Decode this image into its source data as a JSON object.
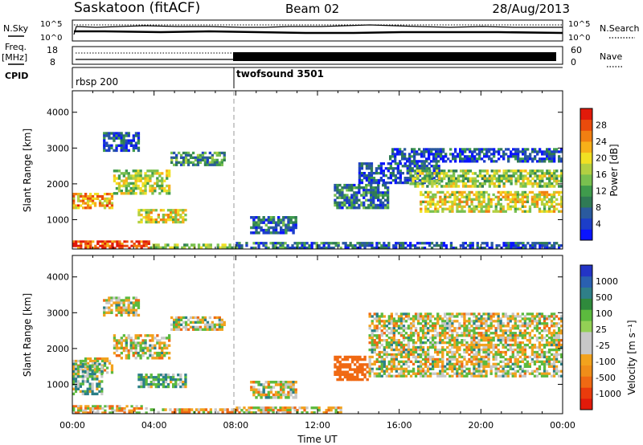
{
  "header": {
    "station": "Saskatoon (fitACF)",
    "beam": "Beam 02",
    "date": "28/Aug/2013"
  },
  "noise_panel": {
    "left_label": "N.Sky",
    "right_label": "N.Search",
    "left_ticks": [
      "10^5",
      "10^0"
    ],
    "right_ticks": [
      "10^5",
      "10^0"
    ]
  },
  "freq_panel": {
    "left_label_1": "Freq.",
    "left_label_2": "[MHz]",
    "right_label": "Nave",
    "left_ticks": [
      "18",
      "8"
    ],
    "right_ticks": [
      "60",
      "0"
    ]
  },
  "cpid_panel": {
    "label": "CPID",
    "segments": [
      {
        "name": "rbsp 200",
        "start": 0,
        "end": 8
      },
      {
        "name": "twofsound 3501",
        "start": 8,
        "end": 24
      }
    ]
  },
  "time_axis": {
    "label": "Time UT",
    "ticks": [
      "00:00",
      "04:00",
      "08:00",
      "12:00",
      "16:00",
      "20:00",
      "00:00"
    ]
  },
  "colorbars": {
    "power": {
      "label": "Power [dB]",
      "ticks": [
        "4",
        "8",
        "12",
        "16",
        "20",
        "24",
        "28"
      ],
      "colors": [
        "#0a14ff",
        "#1c3ec8",
        "#2a5a9e",
        "#2f7a55",
        "#3f9b4c",
        "#79c04f",
        "#b3d042",
        "#f1e023",
        "#f7b019",
        "#f17f12",
        "#ea4b0c",
        "#e11a0a"
      ]
    },
    "velocity": {
      "label": "Velocity [m s⁻¹]",
      "ticks": [
        "1000",
        "500",
        "100",
        "25",
        "-25",
        "-100",
        "-500",
        "-1000"
      ],
      "colors": [
        "#2334c6",
        "#2a60b0",
        "#2f7f88",
        "#2f8a3c",
        "#5cba3e",
        "#93d055",
        "#c8c8c8",
        "#c8c8c8",
        "#f2a21d",
        "#f08d19",
        "#f06913",
        "#ea3b0c",
        "#e11a0a"
      ]
    }
  },
  "chart_data": [
    {
      "type": "heatmap",
      "title": "Power [dB]",
      "xlabel": "Time UT",
      "ylabel": "Slant Range [km]",
      "xlim": [
        0,
        24
      ],
      "ylim": [
        180,
        4600
      ],
      "yticks": [
        "1000",
        "2000",
        "3000",
        "4000"
      ],
      "zlim": [
        0,
        30
      ],
      "regions": [
        {
          "t": [
            0.0,
            3.8
          ],
          "range": [
            180,
            420
          ],
          "value": 27
        },
        {
          "t": [
            3.8,
            8.0
          ],
          "range": [
            180,
            330
          ],
          "value": 14
        },
        {
          "t": [
            8.0,
            13.2
          ],
          "range": [
            180,
            380
          ],
          "value": 8
        },
        {
          "t": [
            13.2,
            24.0
          ],
          "range": [
            180,
            380
          ],
          "value": 5
        },
        {
          "t": [
            0.0,
            2.0
          ],
          "range": [
            1300,
            1750
          ],
          "value": 22
        },
        {
          "t": [
            2.0,
            4.8
          ],
          "range": [
            1700,
            2400
          ],
          "value": 16
        },
        {
          "t": [
            4.8,
            7.5
          ],
          "range": [
            2500,
            2900
          ],
          "value": 10
        },
        {
          "t": [
            1.5,
            3.3
          ],
          "range": [
            2900,
            3450
          ],
          "value": 6
        },
        {
          "t": [
            3.2,
            5.6
          ],
          "range": [
            900,
            1300
          ],
          "value": 18
        },
        {
          "t": [
            8.7,
            11.0
          ],
          "range": [
            600,
            1100
          ],
          "value": 7
        },
        {
          "t": [
            12.8,
            15.5
          ],
          "range": [
            1300,
            2000
          ],
          "value": 8
        },
        {
          "t": [
            14.0,
            18.0
          ],
          "range": [
            2000,
            2600
          ],
          "value": 6
        },
        {
          "t": [
            17.0,
            24.0
          ],
          "range": [
            1200,
            1800
          ],
          "value": 18
        },
        {
          "t": [
            16.5,
            24.0
          ],
          "range": [
            1900,
            2400
          ],
          "value": 15
        },
        {
          "t": [
            15.5,
            24.0
          ],
          "range": [
            2600,
            3000
          ],
          "value": 5
        }
      ]
    },
    {
      "type": "heatmap",
      "title": "Velocity [m s⁻¹]",
      "xlabel": "Time UT",
      "ylabel": "Slant Range [km]",
      "xlim": [
        0,
        24
      ],
      "ylim": [
        180,
        4600
      ],
      "yticks": [
        "1000",
        "2000",
        "3000",
        "4000"
      ],
      "zlim": [
        -1000,
        1000
      ],
      "regions": [
        {
          "t": [
            0.0,
            3.8
          ],
          "range": [
            180,
            420
          ],
          "value": -60
        },
        {
          "t": [
            3.8,
            8.0
          ],
          "range": [
            180,
            330
          ],
          "value": -40
        },
        {
          "t": [
            8.0,
            13.2
          ],
          "range": [
            180,
            380
          ],
          "value": -30
        },
        {
          "t": [
            0.0,
            2.0
          ],
          "range": [
            1300,
            1750
          ],
          "value": 0
        },
        {
          "t": [
            2.0,
            4.8
          ],
          "range": [
            1700,
            2400
          ],
          "value": 0
        },
        {
          "t": [
            4.8,
            7.5
          ],
          "range": [
            2500,
            2900
          ],
          "value": 0
        },
        {
          "t": [
            1.5,
            3.3
          ],
          "range": [
            2900,
            3450
          ],
          "value": 0
        },
        {
          "t": [
            3.2,
            5.6
          ],
          "range": [
            900,
            1300
          ],
          "value": 80
        },
        {
          "t": [
            0.0,
            1.5
          ],
          "range": [
            700,
            1600
          ],
          "value": 60
        },
        {
          "t": [
            8.7,
            11.0
          ],
          "range": [
            600,
            1100
          ],
          "value": 0
        },
        {
          "t": [
            12.8,
            14.5
          ],
          "range": [
            1100,
            1800
          ],
          "value": -300
        },
        {
          "t": [
            14.5,
            24.0
          ],
          "range": [
            1200,
            3000
          ],
          "value": 0
        }
      ]
    }
  ]
}
